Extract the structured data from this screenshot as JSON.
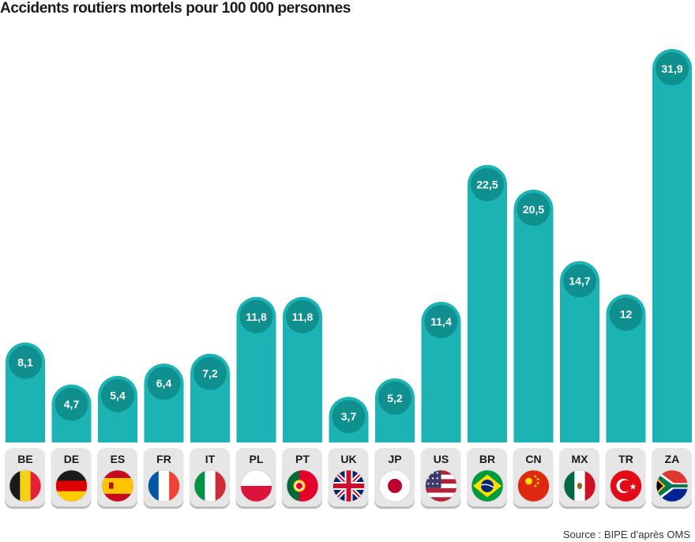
{
  "chart_data": {
    "type": "bar",
    "title": "Accidents routiers mortels pour 100 000 personnes",
    "categories": [
      "BE",
      "DE",
      "ES",
      "FR",
      "IT",
      "PL",
      "PT",
      "UK",
      "JP",
      "US",
      "BR",
      "CN",
      "MX",
      "TR",
      "ZA"
    ],
    "values": [
      8.1,
      4.7,
      5.4,
      6.4,
      7.2,
      11.8,
      11.8,
      3.7,
      5.2,
      11.4,
      22.5,
      20.5,
      14.7,
      12,
      31.9
    ],
    "value_labels": [
      "8,1",
      "4,7",
      "5,4",
      "6,4",
      "7,2",
      "11,8",
      "11,8",
      "3,7",
      "5,2",
      "11,4",
      "22,5",
      "20,5",
      "14,7",
      "12",
      "31,9"
    ],
    "flags": [
      "belgium-flag",
      "germany-flag",
      "spain-flag",
      "france-flag",
      "italy-flag",
      "poland-flag",
      "portugal-flag",
      "uk-flag",
      "japan-flag",
      "usa-flag",
      "brazil-flag",
      "china-flag",
      "mexico-flag",
      "turkey-flag",
      "south-africa-flag"
    ],
    "ylim": [
      0,
      31.9
    ],
    "xlabel": "",
    "ylabel": "",
    "grid": false,
    "colors": {
      "bar": "#1bb3b3",
      "label_circle": "#0f8f8d",
      "plate": "#e6e6e6",
      "plate_shadow": "#bdbdbd"
    }
  },
  "source": "Source : BIPE d’après OMS"
}
